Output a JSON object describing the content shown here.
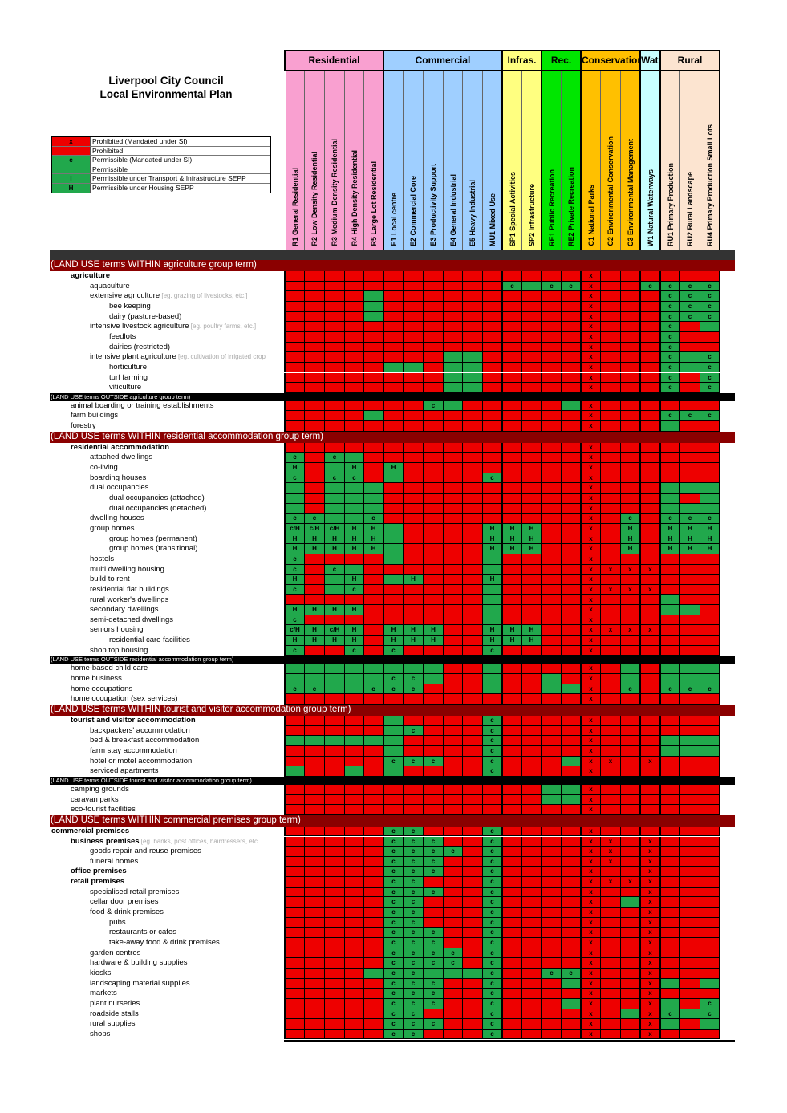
{
  "title": {
    "line1": "Liverpool City Council",
    "line2": "Local Environmental Plan"
  },
  "legend": [
    {
      "symbol": "x",
      "text": "Prohibited (Mandated under SI)",
      "color": "#ee0000"
    },
    {
      "symbol": "",
      "text": "Prohibited",
      "color": "#ee0000"
    },
    {
      "symbol": "c",
      "text": "Permissible (Mandated under SI)",
      "color": "#21a84c"
    },
    {
      "symbol": "",
      "text": "Permissible",
      "color": "#21a84c"
    },
    {
      "symbol": "I",
      "text": "Permissible under Transport & Infrastructure SEPP",
      "color": "#21a84c"
    },
    {
      "symbol": "H",
      "text": "Permissible under Housing SEPP",
      "color": "#21a84c"
    }
  ],
  "zone_groups": [
    {
      "name": "Residential",
      "color": "#f9a0d0",
      "span": 5
    },
    {
      "name": "Commercial",
      "color": "#9fcfff",
      "span": 6
    },
    {
      "name": "Infras.",
      "color": "#ffff80",
      "span": 2
    },
    {
      "name": "Rec.",
      "color": "#00e600",
      "span": 2
    },
    {
      "name": "Conservation",
      "color": "#ffc000",
      "span": 3
    },
    {
      "name": "Wate",
      "color": "#c8ffff",
      "span": 1
    },
    {
      "name": "Rural",
      "color": "#fce4d0",
      "span": 3
    }
  ],
  "zones": [
    "R1 General Residential",
    "R2 Low Density Residential",
    "R3 Medium Density Residential",
    "R4 High Density Residential",
    "R5 Large Lot Residential",
    "E1 Local centre",
    "E2 Commercial Core",
    "E3 Productivity Support",
    "E4 General Industrial",
    "E5 Heavy Industrial",
    "MU1 Mixed Use",
    "SP1 Special Activities",
    "SP2 Infrastructure",
    "RE1 Public Recreation",
    "RE2 Private Recreation",
    "C1 National Parks",
    "C2 Environmental Conservation",
    "C3 Environmental Management",
    "W1 Natural Waterways",
    "RU1 Primary Production",
    "RU2 Rural Landscape",
    "RU4 Primary Production Small Lots"
  ],
  "rows": [
    {
      "type": "group",
      "text": "(LAND USE terms WITHIN agriculture group term)"
    },
    {
      "label": "agriculture",
      "indent": 1,
      "bold": true,
      "cells": "RRRRR RRRRRR RR RR xRR R RRR"
    },
    {
      "label": "aquaculture",
      "indent": 2,
      "cells": "RRRRR RRRRRR cG cc xRR c ccc"
    },
    {
      "label": "extensive agriculture",
      "eg": "[eg. grazing of livestocks, etc.]",
      "indent": 2,
      "cells": "RRRRG RRRRRR RR RR xRR R ccc"
    },
    {
      "label": "bee keeping",
      "indent": 3,
      "cells": "RRRRG RRRRRR RR RR xRR R ccc"
    },
    {
      "label": "dairy (pasture-based)",
      "indent": 3,
      "cells": "RRRRG RRRRRR RR RR xRR R ccc"
    },
    {
      "label": "intensive livestock agriculture",
      "eg": "[eg. poultry farms, etc.]",
      "indent": 2,
      "cells": "RRRRR RRRRRR RR RR xRR R cRG"
    },
    {
      "label": "feedlots",
      "indent": 3,
      "cells": "RRRRR RRRRRR RR RR xRR R cRR"
    },
    {
      "label": "dairies (restricted)",
      "indent": 3,
      "cells": "RRRRR RRRRRR RR RR xRR R cRR"
    },
    {
      "label": "intensive plant agriculture",
      "eg": "[eg. cultivation of irrigated crop",
      "indent": 2,
      "cells": "RRRRR RRRGGR RR RR xRR R cGc"
    },
    {
      "label": "horticulture",
      "indent": 3,
      "cells": "RRRRR GGRGGR RR RR xRR R cGc"
    },
    {
      "label": "turf farming",
      "indent": 3,
      "cells": "RRRRR RRRGGR RR RR xRR R cRc"
    },
    {
      "label": "viticulture",
      "indent": 3,
      "cells": "RRRRR RRRGGR RR RR xRR R cRc"
    },
    {
      "type": "outside",
      "text": "(LAND USE terms OUTSIDE agriculture group term)"
    },
    {
      "label": "animal boarding or training establishments",
      "indent": 1,
      "cells": "RRRRR RRcGRR RR RG xRR R RRR"
    },
    {
      "label": "farm buildings",
      "indent": 1,
      "cells": "RRRRG RRRRRR RR RR xRR R ccc"
    },
    {
      "label": "forestry",
      "indent": 1,
      "cells": "RRRRR RRRRRR RR RR xRR R GRR"
    },
    {
      "type": "group",
      "text": "(LAND USE terms WITHIN residential accommodation group term)"
    },
    {
      "label": "residential accommodation",
      "indent": 1,
      "bold": true,
      "cells": "RRRRR RRRRRR RR RR xRR R RRR"
    },
    {
      "label": "attached dwellings",
      "indent": 2,
      "cells": "cRcGR RRRRRR RR RR xRR R RRR"
    },
    {
      "label": "co-living",
      "indent": 2,
      "cells": "HRGHR HRRRRR RR RR xRR R RRR"
    },
    {
      "label": "boarding houses",
      "indent": 2,
      "cells": "cRccR GRRRRc RR RR xRR R RRR"
    },
    {
      "label": "dual occupancies",
      "indent": 2,
      "cells": "GRGGG RRRRRR RR RR xRR R GGG"
    },
    {
      "label": "dual occupancies (attached)",
      "indent": 3,
      "cells": "GRGGG RRRRRR RR RR xRR R GRG"
    },
    {
      "label": "dual occupancies (detached)",
      "indent": 3,
      "cells": "GRGGG RRRRRR RR RR xRR R GGG"
    },
    {
      "label": "dwelling houses",
      "indent": 2,
      "cells": "ccGGc RRRRRR RR RR xRc R ccc"
    },
    {
      "label": "group homes",
      "indent": 2,
      "cells": "c/Hc/Hc/HHH GRRRRH HH RR xRH R HHH"
    },
    {
      "label": "group homes (permanent)",
      "indent": 3,
      "cells": "HHHHH GRRRRH HH RR xRH R HHH"
    },
    {
      "label": "group homes (transitional)",
      "indent": 3,
      "cells": "HHHHH GRRRRH HH RR xRH R HHH"
    },
    {
      "label": "hostels",
      "indent": 2,
      "cells": "cRRRR GRRRRG RR RR xRR R RRR"
    },
    {
      "label": "multi dwelling housing",
      "indent": 2,
      "cells": "cRcGR RRRRRG RR RR xxx x RRR"
    },
    {
      "label": "build to rent",
      "indent": 2,
      "cells": "HRGHR GHRRRH RR RR xRR R RRR"
    },
    {
      "label": "residential flat buildings",
      "indent": 2,
      "cells": "cRGcR RRRRRG RR RR xxx x RRR"
    },
    {
      "label": "rural worker's dwellings",
      "indent": 2,
      "cells": "RRRRR RRRRRG RR RR xRR R GRR"
    },
    {
      "label": "secondary dwellings",
      "indent": 2,
      "cells": "HHHHR RRRRRG RR RR xRR R GGR"
    },
    {
      "label": "semi-detached dwellings",
      "indent": 2,
      "cells": "cRRRR RRRRRG RR RR xRR R RRR"
    },
    {
      "label": "seniors housing",
      "indent": 2,
      "cells": "c/HHc/HHR HHHRRH HH RR xxx x RRR"
    },
    {
      "label": "residential care facilities",
      "indent": 3,
      "cells": "HHHHR HHHRRH HH RR xRR R RRR"
    },
    {
      "label": "shop top housing",
      "indent": 2,
      "cells": "cRRcR cRRRRc RR RR xRR R RRR"
    },
    {
      "type": "outside",
      "text": "(LAND USE terms OUTSIDE residential accommodation group term)"
    },
    {
      "label": "home-based child care",
      "indent": 1,
      "cells": "GGGGG GGGRRG RR RR xRG R GGG"
    },
    {
      "label": "home business",
      "indent": 1,
      "cells": "GGGGG ccGRRG RR GR xRG R GGG"
    },
    {
      "label": "home occupations",
      "indent": 1,
      "cells": "ccGGc ccRRRG RR GG xRc R ccc"
    },
    {
      "label": "home occupation (sex services)",
      "indent": 1,
      "cells": "RRRRR RRRRRR RR RR xRR R RRR"
    },
    {
      "type": "group",
      "text": "(LAND USE terms WITHIN tourist and visitor accommodation group term)"
    },
    {
      "label": "tourist and visitor accommodation",
      "indent": 1,
      "bold": true,
      "cells": "RRRRR GRRRRc RR RR xRR R RRR"
    },
    {
      "label": "backpackers' accommodation",
      "indent": 2,
      "cells": "RRRRR GcRRRc RR RR xRR R RRR"
    },
    {
      "label": "bed & breakfast accommodation",
      "indent": 2,
      "cells": "GGGGG GRRRRc RR RR xRR R GGG"
    },
    {
      "label": "farm stay accommodation",
      "indent": 2,
      "cells": "RRRRR GRRRRc RR RR xRR R GGG"
    },
    {
      "label": "hotel or motel accommodation",
      "indent": 2,
      "cells": "RRRRR cccRRc RR RG xxR x RRR"
    },
    {
      "label": "serviced apartments",
      "indent": 2,
      "cells": "GRRGR GRRRRc RR RR xRR R RRR"
    },
    {
      "type": "outside",
      "text": "(LAND USE terms OUTSIDE tourist and visitor accommodation group term)"
    },
    {
      "label": "camping grounds",
      "indent": 1,
      "cells": "RRRRR RRRRRR RR GG xRR R RRR"
    },
    {
      "label": "caravan parks",
      "indent": 1,
      "cells": "RRRRR RRRRRR RR GG xRR R RRR"
    },
    {
      "label": "eco-tourist facilities",
      "indent": 1,
      "cells": "RRRRR RRRRRR RR RR xRR R RRR"
    },
    {
      "type": "group",
      "text": "(LAND USE terms WITHIN commercial premises group term)"
    },
    {
      "label": "commercial premises",
      "indent": 0,
      "bold": true,
      "cells": "RRRRR ccRRRc RR RR xRR R RRR"
    },
    {
      "label": "business premises",
      "eg": "[eg. banks, post offices, hairdressers, etc",
      "indent": 1,
      "bold": true,
      "cells": "RRRRR cccRRc RR RR xxR x RRR"
    },
    {
      "label": "goods repair and reuse premises",
      "indent": 2,
      "cells": "RRRRR ccccRc RR RR xxR x RRR"
    },
    {
      "label": "funeral homes",
      "indent": 2,
      "cells": "RRRRR cccRRc RR RR xxR x RRR"
    },
    {
      "label": "office premises",
      "indent": 1,
      "bold": true,
      "cells": "RRRRR cccRRc RR RR xRR x RRR"
    },
    {
      "label": "retail premises",
      "indent": 1,
      "bold": true,
      "cells": "RRRRR ccRRRc RR RR xxx x RRR"
    },
    {
      "label": "specialised retail premises",
      "indent": 2,
      "cells": "RRRRR cccRRc RR RR xRR x RRR"
    },
    {
      "label": "cellar door premises",
      "indent": 2,
      "cells": "RRRRR ccRRRc RR RR xRG x RRR"
    },
    {
      "label": "food & drink premises",
      "indent": 2,
      "cells": "RRRRR ccRRRc RR RR xRR x RRR"
    },
    {
      "label": "pubs",
      "indent": 3,
      "cells": "RRRRR ccRRRc RR RR xRR x RRR"
    },
    {
      "label": "restaurants or cafes",
      "indent": 3,
      "cells": "RRRRR cccRRc RR RR xRR x RRR"
    },
    {
      "label": "take-away food & drink premises",
      "indent": 3,
      "cells": "RRRRR cccRRc RR RR xRR x RRR"
    },
    {
      "label": "garden centres",
      "indent": 2,
      "cells": "RRRRR ccccRc RR RR xRR x RRR"
    },
    {
      "label": "hardware & building supplies",
      "indent": 2,
      "cells": "RRRRR ccccRc RR RR xRR x RRR"
    },
    {
      "label": "kiosks",
      "indent": 2,
      "cells": "RRRRG ccGGGc RR cc xRR x RRR"
    },
    {
      "label": "landscaping material supplies",
      "indent": 2,
      "cells": "RRRRR cccRRc RR RG xRR x GRG"
    },
    {
      "label": "markets",
      "indent": 2,
      "cells": "RRRRR cccRRc RR RR xRR x RRR"
    },
    {
      "label": "plant nurseries",
      "indent": 2,
      "cells": "RRRRR cccRRc RR RG xRR x GRc"
    },
    {
      "label": "roadside stalls",
      "indent": 2,
      "cells": "RRRRR ccRRRc RR RR xRG x cGc"
    },
    {
      "label": "rural supplies",
      "indent": 2,
      "cells": "RRRRR cccRRc RR RR xRR x GRG"
    },
    {
      "label": "shops",
      "indent": 2,
      "cells": "RRRRR ccRRRc RR RR xRR x RRR"
    }
  ]
}
